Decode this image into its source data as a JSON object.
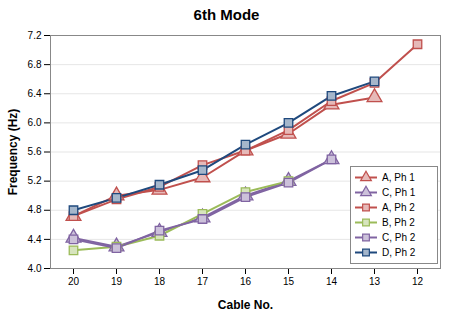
{
  "chart_data": {
    "type": "line",
    "title": "6th Mode",
    "x_label": "Cable No.",
    "y_label": "Frequency (Hz)",
    "categories": [
      20,
      19,
      18,
      17,
      16,
      15,
      14,
      13,
      12
    ],
    "ylim": [
      4.0,
      7.2
    ],
    "yticks": [
      {
        "value": 4.0,
        "label": "4.0"
      },
      4.4,
      4.8,
      5.2,
      5.6,
      {
        "value": 6.0,
        "label": "6.0"
      },
      6.4,
      6.8,
      7.2
    ],
    "grid": true,
    "legend": "right",
    "series": [
      {
        "name": "A, Ph 1",
        "color": "#c0504d",
        "marker": "triangle",
        "values": [
          4.72,
          5.0,
          5.08,
          5.25,
          5.62,
          5.85,
          6.25,
          6.35,
          null
        ]
      },
      {
        "name": "C, Ph 1",
        "color": "#8064a2",
        "marker": "triangle",
        "values": [
          4.42,
          4.3,
          4.5,
          4.7,
          5.0,
          5.2,
          5.5,
          null,
          null
        ]
      },
      {
        "name": "A, Ph 2",
        "color": "#c0504d",
        "marker": "square",
        "values": [
          4.72,
          4.95,
          5.12,
          5.42,
          5.62,
          5.9,
          6.3,
          6.55,
          7.08
        ]
      },
      {
        "name": "B, Ph 2",
        "color": "#9bbb59",
        "marker": "square",
        "values": [
          4.25,
          4.3,
          4.45,
          4.75,
          5.05,
          5.2,
          null,
          null,
          null
        ]
      },
      {
        "name": "C, Ph 2",
        "color": "#8064a2",
        "marker": "square",
        "values": [
          4.4,
          4.28,
          4.52,
          4.68,
          4.98,
          5.18,
          5.5,
          null,
          null
        ]
      },
      {
        "name": "D, Ph 2",
        "color": "#1f497d",
        "marker": "square",
        "values": [
          4.8,
          4.97,
          5.15,
          5.35,
          5.7,
          6.0,
          6.37,
          6.57,
          null
        ]
      }
    ]
  }
}
